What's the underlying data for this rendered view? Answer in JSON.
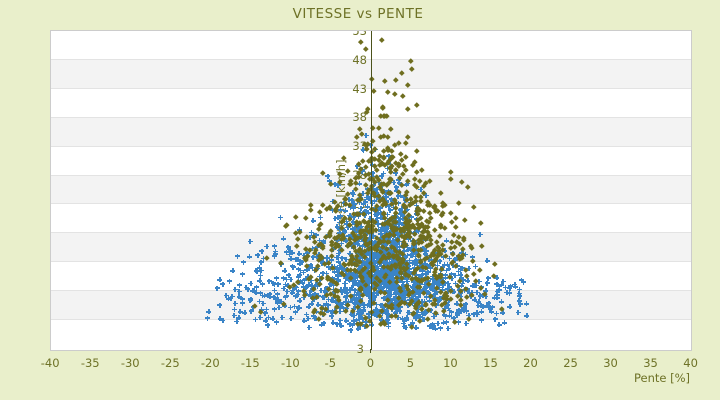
{
  "chart_data": {
    "type": "scatter",
    "title": "VITESSE vs PENTE",
    "xlabel": "Pente [%]",
    "ylabel": "Vitesse [km/h]",
    "xlim": [
      -40,
      40
    ],
    "x_ticks": [
      -40,
      -35,
      -30,
      -25,
      -20,
      -15,
      -10,
      -5,
      0,
      5,
      10,
      15,
      20,
      25,
      30,
      35,
      40
    ],
    "y_ticks": [
      53,
      48,
      43,
      38,
      33,
      28,
      23,
      18,
      13,
      8,
      3
    ],
    "y_axis_bottom_edge_label": "3",
    "grid": "horizontal-alternating-bands",
    "legend_position": "none",
    "zero_axis_at_x": 0,
    "colors": {
      "background": "#e9efcb",
      "plot_bg": "#ffffff",
      "band_fill": "#f3f3f3",
      "band_line": "#e3e3e3",
      "plot_border": "#cccccc",
      "text": "#6e7227",
      "zero_axis_line": "#4b521b",
      "series_blue": "#3a84c7",
      "series_olive": "#6f6e1f"
    },
    "series": [
      {
        "name": "vitesse-points-bleus",
        "marker": "plus",
        "color": "#3a84c7",
        "seed": 1234567,
        "clusters": [
          {
            "n": 780,
            "mp": 1.2,
            "sp": 2.6,
            "mv": 12.5,
            "sv": 5.2,
            "pmin": -6.5,
            "pmax": 7.5,
            "vmin": 1.5,
            "vmax": 26
          },
          {
            "n": 360,
            "mp": 0.5,
            "sp": 5.5,
            "mv": 9.5,
            "sv": 4.5,
            "pmin": -14,
            "pmax": 12,
            "vmin": 1.2,
            "vmax": 23
          },
          {
            "n": 170,
            "mp": -9,
            "sp": 3.8,
            "mv": 9,
            "sv": 4.5,
            "pmin": -19,
            "pmax": -2,
            "vmin": 1.5,
            "vmax": 22
          },
          {
            "n": 180,
            "mp": 8.5,
            "sp": 3.5,
            "mv": 7.5,
            "sv": 3.8,
            "pmin": 2,
            "pmax": 18,
            "vmin": 1.5,
            "vmax": 18
          },
          {
            "n": 60,
            "mp": 15.5,
            "sp": 3.0,
            "mv": 6.5,
            "sv": 2.2,
            "pmin": 10,
            "pmax": 21.5,
            "vmin": 2,
            "vmax": 12
          },
          {
            "n": 40,
            "mp": -16,
            "sp": 2.6,
            "mv": 6.5,
            "sv": 2.4,
            "pmin": -21.5,
            "pmax": -10,
            "vmin": 2,
            "vmax": 12
          },
          {
            "n": 90,
            "mp": 0.8,
            "sp": 2.6,
            "mv": 24.5,
            "sv": 3.2,
            "pmin": -6,
            "pmax": 7,
            "vmin": 20,
            "vmax": 33
          },
          {
            "n": 10,
            "mp": 0.8,
            "sp": 1.8,
            "mv": 30.5,
            "sv": 2.2,
            "pmin": -3,
            "pmax": 5,
            "vmin": 27,
            "vmax": 36
          }
        ]
      },
      {
        "name": "vitesse-points-olive",
        "marker": "diamond",
        "color": "#6f6e1f",
        "seed": 7654321,
        "clusters": [
          {
            "n": 400,
            "mp": 2.8,
            "sp": 4.6,
            "mv": 18.5,
            "sv": 5.2,
            "pmin": -9,
            "pmax": 13.5,
            "vmin": 4,
            "vmax": 32
          },
          {
            "n": 110,
            "mp": 8.0,
            "sp": 3.2,
            "mv": 12,
            "sv": 4.5,
            "pmin": 1,
            "pmax": 15.5,
            "vmin": 3,
            "vmax": 25
          },
          {
            "n": 85,
            "mp": -5.5,
            "sp": 3.0,
            "mv": 13,
            "sv": 5,
            "pmin": -13,
            "pmax": 1,
            "vmin": 3,
            "vmax": 26
          },
          {
            "n": 85,
            "mp": 1.8,
            "sp": 2.4,
            "mv": 30,
            "sv": 3.2,
            "pmin": -4.5,
            "pmax": 8,
            "vmin": 25,
            "vmax": 38.5
          },
          {
            "n": 24,
            "mp": 2.0,
            "sp": 2.0,
            "mv": 43,
            "sv": 4.6,
            "pmin": -5,
            "pmax": 6.5,
            "vmin": 36.5,
            "vmax": 53.2
          },
          {
            "n": 70,
            "mp": 1.5,
            "sp": 6.5,
            "mv": 5.5,
            "sv": 2.2,
            "pmin": -15,
            "pmax": 16.5,
            "vmin": 1.8,
            "vmax": 11
          }
        ]
      }
    ]
  }
}
